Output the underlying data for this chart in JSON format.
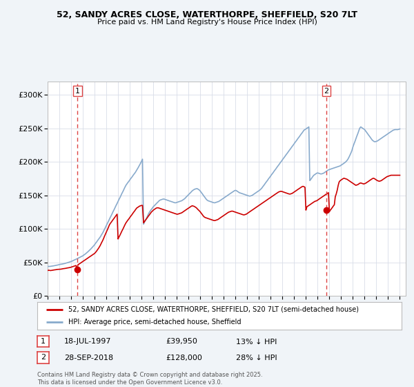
{
  "title_line1": "52, SANDY ACRES CLOSE, WATERTHORPE, SHEFFIELD, S20 7LT",
  "title_line2": "Price paid vs. HM Land Registry's House Price Index (HPI)",
  "ylim": [
    0,
    320000
  ],
  "yticks": [
    0,
    50000,
    100000,
    150000,
    200000,
    250000,
    300000
  ],
  "ytick_labels": [
    "£0",
    "£50K",
    "£100K",
    "£150K",
    "£200K",
    "£250K",
    "£300K"
  ],
  "annotation1": {
    "label": "1",
    "date": "18-JUL-1997",
    "price": 39950,
    "price_str": "£39,950",
    "note": "13% ↓ HPI",
    "x_year": 1997.55
  },
  "annotation2": {
    "label": "2",
    "date": "28-SEP-2018",
    "price": 128000,
    "price_str": "£128,000",
    "note": "28% ↓ HPI",
    "x_year": 2018.75
  },
  "legend_line1": "52, SANDY ACRES CLOSE, WATERTHORPE, SHEFFIELD, S20 7LT (semi-detached house)",
  "legend_line2": "HPI: Average price, semi-detached house, Sheffield",
  "footer": "Contains HM Land Registry data © Crown copyright and database right 2025.\nThis data is licensed under the Open Government Licence v3.0.",
  "line_color_red": "#cc0000",
  "line_color_blue": "#88aacc",
  "background_color": "#f0f4f8",
  "plot_bg_color": "#ffffff",
  "grid_color": "#d8dde8",
  "dashed_line_color": "#dd4444",
  "xlim": [
    1995,
    2025.5
  ],
  "xticks": [
    1995,
    1996,
    1997,
    1998,
    1999,
    2000,
    2001,
    2002,
    2003,
    2004,
    2005,
    2006,
    2007,
    2008,
    2009,
    2010,
    2011,
    2012,
    2013,
    2014,
    2015,
    2016,
    2017,
    2018,
    2019,
    2020,
    2021,
    2022,
    2023,
    2024,
    2025
  ],
  "hpi_x": [
    1995.0,
    1995.08,
    1995.17,
    1995.25,
    1995.33,
    1995.42,
    1995.5,
    1995.58,
    1995.67,
    1995.75,
    1995.83,
    1995.92,
    1996.0,
    1996.08,
    1996.17,
    1996.25,
    1996.33,
    1996.42,
    1996.5,
    1996.58,
    1996.67,
    1996.75,
    1996.83,
    1996.92,
    1997.0,
    1997.08,
    1997.17,
    1997.25,
    1997.33,
    1997.42,
    1997.5,
    1997.58,
    1997.67,
    1997.75,
    1997.83,
    1997.92,
    1998.0,
    1998.08,
    1998.17,
    1998.25,
    1998.33,
    1998.42,
    1998.5,
    1998.58,
    1998.67,
    1998.75,
    1998.83,
    1998.92,
    1999.0,
    1999.08,
    1999.17,
    1999.25,
    1999.33,
    1999.42,
    1999.5,
    1999.58,
    1999.67,
    1999.75,
    1999.83,
    1999.92,
    2000.0,
    2000.08,
    2000.17,
    2000.25,
    2000.33,
    2000.42,
    2000.5,
    2000.58,
    2000.67,
    2000.75,
    2000.83,
    2000.92,
    2001.0,
    2001.08,
    2001.17,
    2001.25,
    2001.33,
    2001.42,
    2001.5,
    2001.58,
    2001.67,
    2001.75,
    2001.83,
    2001.92,
    2002.0,
    2002.08,
    2002.17,
    2002.25,
    2002.33,
    2002.42,
    2002.5,
    2002.58,
    2002.67,
    2002.75,
    2002.83,
    2002.92,
    2003.0,
    2003.08,
    2003.17,
    2003.25,
    2003.33,
    2003.42,
    2003.5,
    2003.58,
    2003.67,
    2003.75,
    2003.83,
    2003.92,
    2004.0,
    2004.08,
    2004.17,
    2004.25,
    2004.33,
    2004.42,
    2004.5,
    2004.58,
    2004.67,
    2004.75,
    2004.83,
    2004.92,
    2005.0,
    2005.08,
    2005.17,
    2005.25,
    2005.33,
    2005.42,
    2005.5,
    2005.58,
    2005.67,
    2005.75,
    2005.83,
    2005.92,
    2006.0,
    2006.08,
    2006.17,
    2006.25,
    2006.33,
    2006.42,
    2006.5,
    2006.58,
    2006.67,
    2006.75,
    2006.83,
    2006.92,
    2007.0,
    2007.08,
    2007.17,
    2007.25,
    2007.33,
    2007.42,
    2007.5,
    2007.58,
    2007.67,
    2007.75,
    2007.83,
    2007.92,
    2008.0,
    2008.08,
    2008.17,
    2008.25,
    2008.33,
    2008.42,
    2008.5,
    2008.58,
    2008.67,
    2008.75,
    2008.83,
    2008.92,
    2009.0,
    2009.08,
    2009.17,
    2009.25,
    2009.33,
    2009.42,
    2009.5,
    2009.58,
    2009.67,
    2009.75,
    2009.83,
    2009.92,
    2010.0,
    2010.08,
    2010.17,
    2010.25,
    2010.33,
    2010.42,
    2010.5,
    2010.58,
    2010.67,
    2010.75,
    2010.83,
    2010.92,
    2011.0,
    2011.08,
    2011.17,
    2011.25,
    2011.33,
    2011.42,
    2011.5,
    2011.58,
    2011.67,
    2011.75,
    2011.83,
    2011.92,
    2012.0,
    2012.08,
    2012.17,
    2012.25,
    2012.33,
    2012.42,
    2012.5,
    2012.58,
    2012.67,
    2012.75,
    2012.83,
    2012.92,
    2013.0,
    2013.08,
    2013.17,
    2013.25,
    2013.33,
    2013.42,
    2013.5,
    2013.58,
    2013.67,
    2013.75,
    2013.83,
    2013.92,
    2014.0,
    2014.08,
    2014.17,
    2014.25,
    2014.33,
    2014.42,
    2014.5,
    2014.58,
    2014.67,
    2014.75,
    2014.83,
    2014.92,
    2015.0,
    2015.08,
    2015.17,
    2015.25,
    2015.33,
    2015.42,
    2015.5,
    2015.58,
    2015.67,
    2015.75,
    2015.83,
    2015.92,
    2016.0,
    2016.08,
    2016.17,
    2016.25,
    2016.33,
    2016.42,
    2016.5,
    2016.58,
    2016.67,
    2016.75,
    2016.83,
    2016.92,
    2017.0,
    2017.08,
    2017.17,
    2017.25,
    2017.33,
    2017.42,
    2017.5,
    2017.58,
    2017.67,
    2017.75,
    2017.83,
    2017.92,
    2018.0,
    2018.08,
    2018.17,
    2018.25,
    2018.33,
    2018.42,
    2018.5,
    2018.58,
    2018.67,
    2018.75,
    2018.83,
    2018.92,
    2019.0,
    2019.08,
    2019.17,
    2019.25,
    2019.33,
    2019.42,
    2019.5,
    2019.58,
    2019.67,
    2019.75,
    2019.83,
    2019.92,
    2020.0,
    2020.08,
    2020.17,
    2020.25,
    2020.33,
    2020.42,
    2020.5,
    2020.58,
    2020.67,
    2020.75,
    2020.83,
    2020.92,
    2021.0,
    2021.08,
    2021.17,
    2021.25,
    2021.33,
    2021.42,
    2021.5,
    2021.58,
    2021.67,
    2021.75,
    2021.83,
    2021.92,
    2022.0,
    2022.08,
    2022.17,
    2022.25,
    2022.33,
    2022.42,
    2022.5,
    2022.58,
    2022.67,
    2022.75,
    2022.83,
    2022.92,
    2023.0,
    2023.08,
    2023.17,
    2023.25,
    2023.33,
    2023.42,
    2023.5,
    2023.58,
    2023.67,
    2023.75,
    2023.83,
    2023.92,
    2024.0,
    2024.08,
    2024.17,
    2024.25,
    2024.33,
    2024.42,
    2024.5,
    2024.58,
    2024.67,
    2024.75,
    2024.83,
    2024.92,
    2025.0
  ],
  "hpi_y": [
    44000,
    44200,
    44100,
    44300,
    44500,
    44800,
    45000,
    45300,
    45600,
    46000,
    46200,
    46500,
    47000,
    47200,
    47400,
    47700,
    48000,
    48300,
    48700,
    49200,
    49600,
    50100,
    50500,
    51000,
    51500,
    52000,
    52800,
    53500,
    54200,
    54800,
    55500,
    56200,
    57000,
    57800,
    58500,
    59200,
    60000,
    61000,
    62000,
    63200,
    64500,
    65800,
    67200,
    68500,
    70000,
    71500,
    73000,
    74800,
    76500,
    78500,
    80500,
    82500,
    84500,
    86500,
    88500,
    91000,
    93500,
    96000,
    99000,
    102000,
    105000,
    108000,
    111000,
    114000,
    117000,
    120000,
    123000,
    126000,
    129000,
    132000,
    135000,
    138000,
    141000,
    144000,
    147000,
    150000,
    153000,
    156000,
    159000,
    162000,
    165000,
    167000,
    169000,
    171000,
    173000,
    175000,
    177000,
    179000,
    181000,
    183000,
    185000,
    187500,
    190000,
    192500,
    195000,
    198000,
    201000,
    204000,
    107000,
    110000,
    113000,
    116000,
    119000,
    122000,
    125000,
    127000,
    129000,
    131000,
    133000,
    134500,
    136000,
    137500,
    139000,
    140500,
    142000,
    143000,
    143500,
    144000,
    144500,
    144500,
    144000,
    143500,
    143000,
    142500,
    142000,
    141500,
    141000,
    140500,
    140000,
    139500,
    139000,
    139000,
    139500,
    140000,
    140500,
    141000,
    141500,
    142000,
    143000,
    144000,
    145000,
    146500,
    148000,
    149500,
    151000,
    152500,
    154000,
    155500,
    157000,
    158000,
    159000,
    159500,
    160000,
    160000,
    159000,
    158000,
    156500,
    154500,
    152500,
    150500,
    148500,
    146500,
    144500,
    143000,
    142000,
    141500,
    141000,
    140500,
    140000,
    139500,
    139000,
    139000,
    139500,
    140000,
    140500,
    141000,
    142000,
    143000,
    144000,
    145000,
    146000,
    147000,
    148000,
    149000,
    150000,
    151000,
    152000,
    153000,
    154000,
    155000,
    156000,
    157000,
    157500,
    157000,
    156000,
    155000,
    154000,
    153500,
    153000,
    152500,
    152000,
    151500,
    151000,
    150500,
    150000,
    149500,
    149000,
    149000,
    149500,
    150000,
    151000,
    152000,
    153000,
    154000,
    155000,
    156000,
    157000,
    158000,
    159500,
    161000,
    163000,
    165000,
    167000,
    169000,
    171000,
    173000,
    175000,
    177000,
    179000,
    181000,
    183000,
    185000,
    187000,
    189000,
    191000,
    193000,
    195000,
    197000,
    199000,
    201000,
    203000,
    205000,
    207000,
    209000,
    211000,
    213000,
    215000,
    217000,
    219000,
    221000,
    223000,
    225000,
    227000,
    229000,
    231000,
    233000,
    235000,
    237000,
    239000,
    241000,
    243000,
    245000,
    247000,
    248000,
    249000,
    250000,
    251000,
    252000,
    172000,
    174000,
    176000,
    178000,
    180000,
    181000,
    182000,
    183000,
    183500,
    183000,
    182500,
    182000,
    182000,
    182500,
    183000,
    184000,
    185000,
    186000,
    187000,
    188000,
    188500,
    189000,
    189500,
    190000,
    190500,
    191000,
    191500,
    192000,
    192500,
    193000,
    193500,
    194000,
    195000,
    196000,
    197000,
    198000,
    199000,
    200500,
    202000,
    204000,
    207000,
    210000,
    213000,
    217000,
    222000,
    226000,
    230000,
    234000,
    238000,
    242000,
    246000,
    250000,
    252000,
    251000,
    250000,
    249000,
    248000,
    246000,
    244000,
    242000,
    240000,
    238000,
    236000,
    234000,
    232000,
    231000,
    230000,
    230000,
    230500,
    231000,
    232000,
    233000,
    234000,
    235000,
    236000,
    237000,
    238000,
    239000,
    240000,
    241000,
    242000,
    243000,
    244000,
    245000,
    246000,
    247000,
    247500,
    248000,
    248000,
    248000,
    248000,
    248500,
    249000
  ],
  "price_y": [
    38000,
    38500,
    38200,
    38000,
    38200,
    38500,
    38800,
    39000,
    39200,
    39500,
    39700,
    39800,
    39950,
    40000,
    40200,
    40500,
    40800,
    41000,
    41200,
    41500,
    41800,
    42000,
    42300,
    42600,
    43000,
    43500,
    44000,
    44500,
    45000,
    45500,
    39950,
    46500,
    47500,
    48500,
    49500,
    50500,
    51500,
    52500,
    53500,
    54500,
    55500,
    56500,
    57500,
    58500,
    59500,
    60500,
    61500,
    62500,
    63500,
    65000,
    67000,
    69000,
    71000,
    73500,
    76000,
    79000,
    82000,
    85000,
    88500,
    92000,
    95000,
    98500,
    102000,
    105500,
    108000,
    110000,
    112000,
    114000,
    116000,
    118000,
    120000,
    122000,
    85000,
    88000,
    91000,
    94000,
    97000,
    100000,
    103000,
    106000,
    109000,
    111000,
    113000,
    115000,
    117000,
    119000,
    121000,
    123000,
    125000,
    127000,
    129000,
    131000,
    132000,
    133000,
    134000,
    134500,
    135000,
    135000,
    109000,
    111000,
    113000,
    115000,
    117000,
    119000,
    121000,
    123000,
    125000,
    126500,
    128000,
    129000,
    130000,
    131000,
    131500,
    131500,
    131000,
    130500,
    130000,
    129500,
    129000,
    128500,
    128000,
    127500,
    127000,
    126500,
    126000,
    125500,
    125000,
    124500,
    124000,
    123500,
    123000,
    122500,
    122000,
    122000,
    122500,
    123000,
    123500,
    124000,
    125000,
    126000,
    127000,
    128000,
    129000,
    130000,
    131000,
    132000,
    133000,
    134000,
    134500,
    134000,
    133500,
    132500,
    131500,
    130000,
    128500,
    127000,
    125500,
    123500,
    121500,
    119500,
    118000,
    117000,
    116500,
    116000,
    115500,
    115000,
    114500,
    114000,
    113500,
    113000,
    112500,
    112500,
    113000,
    113500,
    114000,
    115000,
    116000,
    117000,
    118000,
    119000,
    120000,
    121000,
    122000,
    123000,
    124000,
    125000,
    125500,
    126000,
    126500,
    126500,
    126000,
    125500,
    125000,
    124500,
    124000,
    123500,
    123000,
    122500,
    122000,
    121500,
    121000,
    121000,
    121500,
    122000,
    123000,
    124000,
    125000,
    126000,
    127000,
    128000,
    129000,
    130000,
    131000,
    132000,
    133000,
    134000,
    135000,
    136000,
    137000,
    138000,
    139000,
    140000,
    141000,
    142000,
    143000,
    144000,
    145000,
    146000,
    147000,
    148000,
    149000,
    150000,
    151000,
    152000,
    153000,
    154000,
    155000,
    155500,
    156000,
    156000,
    155500,
    155000,
    154500,
    154000,
    153500,
    153000,
    152500,
    152000,
    152000,
    152500,
    153000,
    154000,
    155000,
    156000,
    157000,
    158000,
    159000,
    160000,
    161000,
    162000,
    163000,
    163500,
    163000,
    162000,
    128000,
    133000,
    134000,
    135000,
    136000,
    137000,
    138000,
    139000,
    140000,
    141000,
    141500,
    142000,
    143000,
    144000,
    145000,
    146000,
    147000,
    148000,
    149000,
    150000,
    151000,
    152000,
    153000,
    154000,
    126000,
    128000,
    130000,
    132000,
    134000,
    136000,
    148000,
    152000,
    158000,
    165000,
    170000,
    172000,
    173000,
    174000,
    175000,
    175500,
    175000,
    174500,
    174000,
    173000,
    172000,
    171000,
    170000,
    169000,
    168000,
    167000,
    166000,
    165000,
    165500,
    166000,
    167000,
    168000,
    168500,
    168000,
    167500,
    167000,
    167500,
    168000,
    169000,
    170000,
    171000,
    172000,
    173000,
    174000,
    175000,
    175500,
    175000,
    174000,
    173000,
    172000,
    171500,
    171000,
    171500,
    172000,
    173000,
    174000,
    175000,
    176000,
    177000,
    178000,
    178500,
    179000,
    179500,
    180000,
    180000,
    180000,
    180000,
    180000,
    180000,
    180000,
    180000,
    180000,
    180000
  ]
}
